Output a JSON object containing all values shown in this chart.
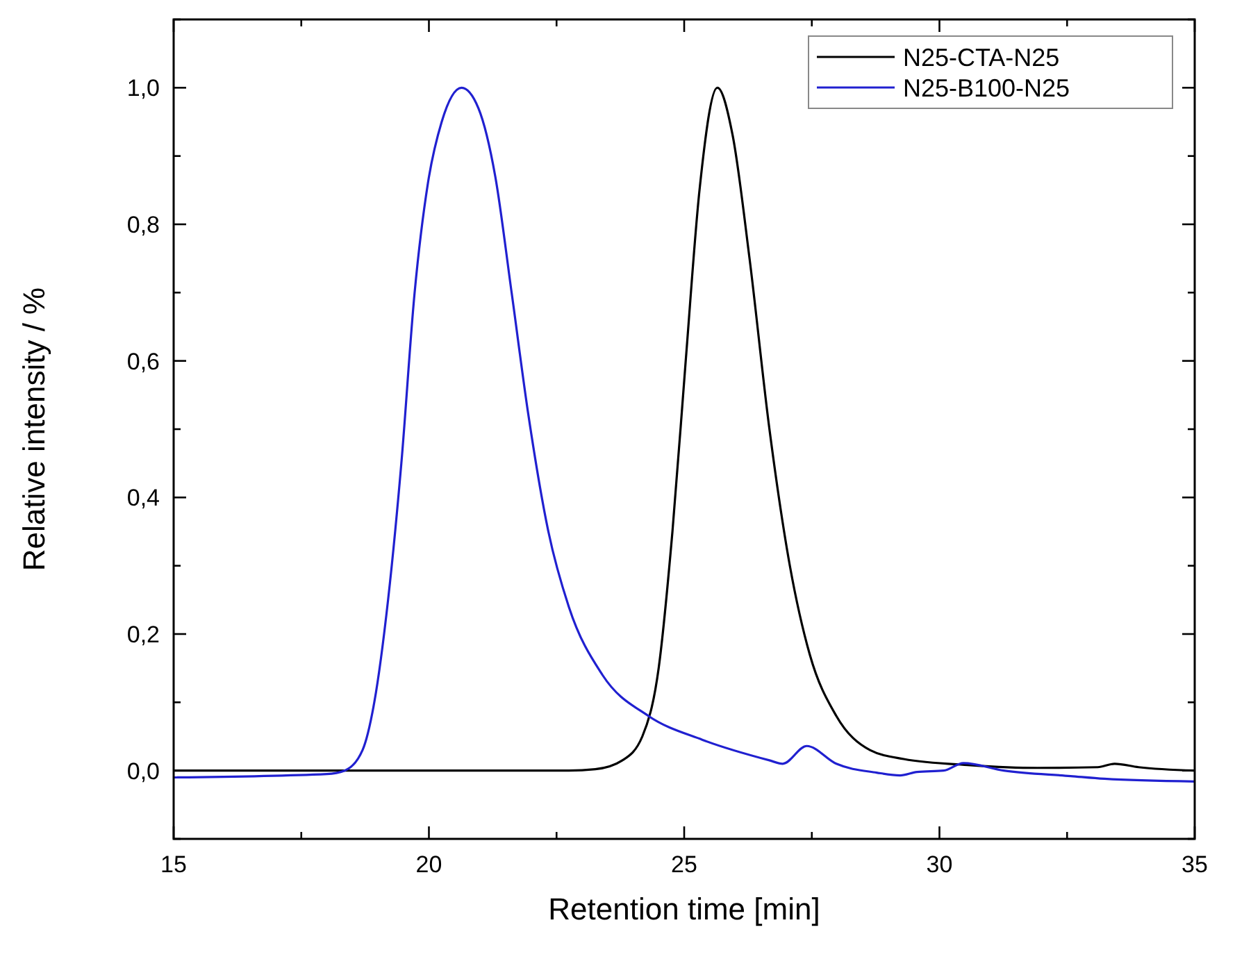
{
  "chart_data": {
    "type": "line",
    "xlabel": "Retention time [min]",
    "ylabel": "Relative intensity / %",
    "xlim": [
      15,
      35
    ],
    "ylim": [
      -0.1,
      1.1
    ],
    "xticks": [
      15,
      {
        "value": 17.5,
        "label": null
      },
      20,
      {
        "value": 22.5,
        "label": null
      },
      25,
      {
        "value": 27.5,
        "label": null
      },
      30,
      {
        "value": 32.5,
        "label": null
      },
      35
    ],
    "yticks": [
      {
        "value": -0.1,
        "label": null
      },
      {
        "value": 0,
        "label": "0,0"
      },
      {
        "value": 0.1,
        "label": null
      },
      {
        "value": 0.2,
        "label": "0,2"
      },
      {
        "value": 0.3,
        "label": null
      },
      {
        "value": 0.4,
        "label": "0,4"
      },
      {
        "value": 0.5,
        "label": null
      },
      {
        "value": 0.6,
        "label": "0,6"
      },
      {
        "value": 0.7,
        "label": null
      },
      {
        "value": 0.8,
        "label": "0,8"
      },
      {
        "value": 0.9,
        "label": null
      },
      {
        "value": 1,
        "label": "1,0"
      },
      {
        "value": 1.1,
        "label": null
      }
    ],
    "legend": "top right",
    "grid": false,
    "marker": "none",
    "line_style": "solid",
    "series": [
      {
        "name": "N25-CTA-N25",
        "color": "#000000",
        "x": [
          15,
          20,
          22.74,
          23.26,
          23.79,
          24.18,
          24.5,
          24.77,
          25.03,
          25.3,
          25.65,
          25.95,
          26.28,
          26.67,
          27.07,
          27.46,
          27.98,
          28.64,
          29.3,
          30.6,
          31.92,
          33.1,
          33.43,
          33.9,
          35
        ],
        "values": [
          0,
          0,
          0,
          0.002,
          0.015,
          0.05,
          0.15,
          0.35,
          0.6,
          0.85,
          1,
          0.93,
          0.75,
          0.5,
          0.3,
          0.17,
          0.08,
          0.03,
          0.017,
          0.008,
          0.004,
          0.005,
          0.01,
          0.005,
          0
        ]
      },
      {
        "name": "N25-B100-N25",
        "color": "#2020d0",
        "x": [
          15,
          18,
          18.35,
          18.7,
          18.93,
          19.2,
          19.46,
          19.72,
          19.98,
          20.25,
          20.64,
          20.97,
          21.3,
          21.62,
          21.95,
          22.34,
          22.74,
          23.4,
          24.3,
          25.36,
          26.67,
          26.93,
          27.4,
          27.98,
          28.77,
          29.23,
          29.56,
          30.08,
          30.47,
          31.26,
          32.57,
          33.23,
          35
        ],
        "values": [
          -0.01,
          -0.005,
          0,
          0.03,
          0.1,
          0.25,
          0.45,
          0.7,
          0.86,
          0.95,
          1,
          0.97,
          0.87,
          0.7,
          0.52,
          0.35,
          0.24,
          0.14,
          0.08,
          0.045,
          0.015,
          0.01,
          0.036,
          0.01,
          -0.003,
          -0.007,
          -0.002,
          0,
          0.011,
          0,
          -0.008,
          -0.012,
          -0.016
        ]
      }
    ]
  }
}
